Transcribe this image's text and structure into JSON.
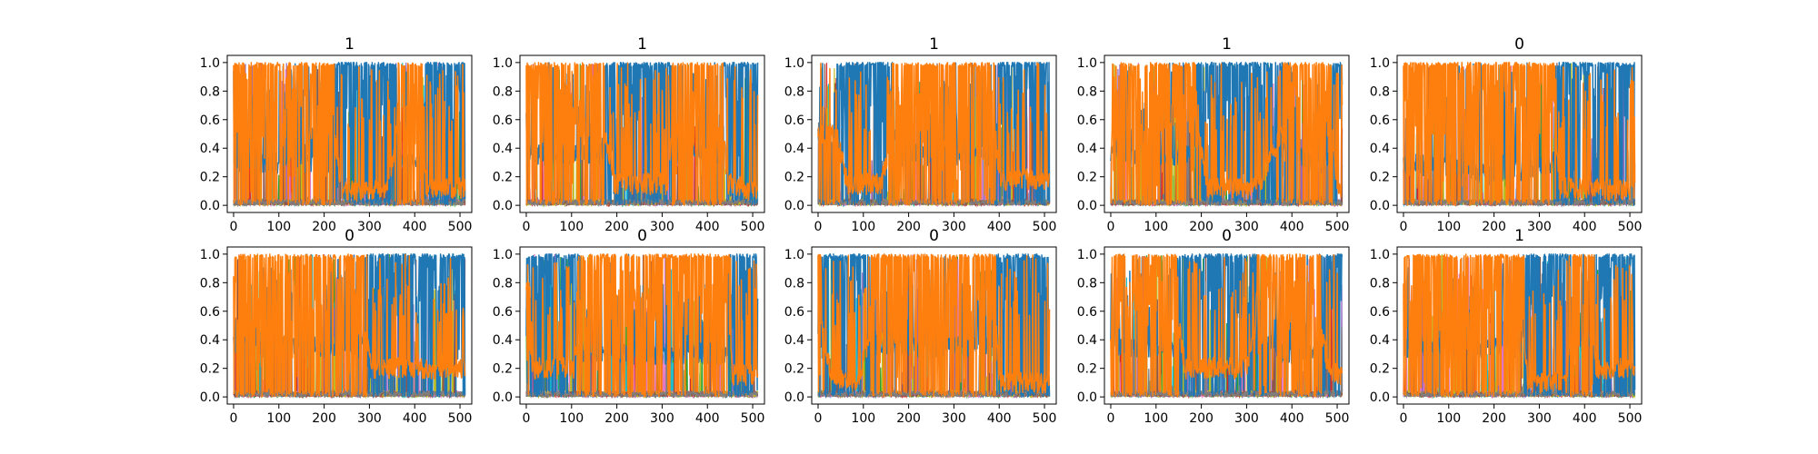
{
  "figure": {
    "layout": {
      "rows": 2,
      "cols": 5
    }
  },
  "chart_data": [
    {
      "type": "line",
      "title": "1",
      "xlim": [
        -14,
        526
      ],
      "ylim": [
        -0.05,
        1.05
      ],
      "xticks": [
        "0",
        "100",
        "200",
        "300",
        "400",
        "500"
      ],
      "yticks": [
        "0.0",
        "0.2",
        "0.4",
        "0.6",
        "0.8",
        "1.0"
      ],
      "grid": false,
      "n_points": 512,
      "series": [
        {
          "color": "#ff7f0e",
          "profile": [
            [
              0,
              0.75
            ],
            [
              210,
              0.75
            ],
            [
              225,
              0.45
            ],
            [
              240,
              0.1
            ],
            [
              340,
              0.1
            ],
            [
              370,
              0.7
            ],
            [
              415,
              0.7
            ],
            [
              425,
              0.12
            ],
            [
              511,
              0.12
            ]
          ]
        },
        {
          "color": "#1f77b4",
          "profile": [
            [
              0,
              0.3
            ],
            [
              210,
              0.3
            ],
            [
              240,
              0.9
            ],
            [
              340,
              0.9
            ],
            [
              370,
              0.3
            ],
            [
              415,
              0.3
            ],
            [
              425,
              0.88
            ],
            [
              511,
              0.88
            ]
          ]
        }
      ]
    },
    {
      "type": "line",
      "title": "1",
      "xlim": [
        -14,
        526
      ],
      "ylim": [
        -0.05,
        1.05
      ],
      "xticks": [
        "0",
        "100",
        "200",
        "300",
        "400",
        "500"
      ],
      "yticks": [
        "0.0",
        "0.2",
        "0.4",
        "0.6",
        "0.8",
        "1.0"
      ],
      "grid": false,
      "n_points": 512,
      "series": [
        {
          "color": "#ff7f0e",
          "profile": [
            [
              0,
              0.7
            ],
            [
              160,
              0.7
            ],
            [
              195,
              0.15
            ],
            [
              315,
              0.15
            ],
            [
              325,
              0.7
            ],
            [
              430,
              0.7
            ],
            [
              445,
              0.15
            ],
            [
              511,
              0.1
            ]
          ]
        },
        {
          "color": "#1f77b4",
          "profile": [
            [
              0,
              0.35
            ],
            [
              160,
              0.35
            ],
            [
              195,
              0.88
            ],
            [
              315,
              0.88
            ],
            [
              325,
              0.35
            ],
            [
              430,
              0.35
            ],
            [
              445,
              0.9
            ],
            [
              511,
              0.9
            ]
          ]
        }
      ]
    },
    {
      "type": "line",
      "title": "1",
      "xlim": [
        -14,
        526
      ],
      "ylim": [
        -0.05,
        1.05
      ],
      "xticks": [
        "0",
        "100",
        "200",
        "300",
        "400",
        "500"
      ],
      "yticks": [
        "0.0",
        "0.2",
        "0.4",
        "0.6",
        "0.8",
        "1.0"
      ],
      "grid": false,
      "n_points": 512,
      "series": [
        {
          "color": "#ff7f0e",
          "profile": [
            [
              0,
              0.5
            ],
            [
              40,
              0.5
            ],
            [
              65,
              0.15
            ],
            [
              140,
              0.15
            ],
            [
              175,
              0.7
            ],
            [
              385,
              0.7
            ],
            [
              400,
              0.18
            ],
            [
              511,
              0.18
            ]
          ]
        },
        {
          "color": "#1f77b4",
          "profile": [
            [
              0,
              0.5
            ],
            [
              40,
              0.5
            ],
            [
              65,
              0.88
            ],
            [
              140,
              0.88
            ],
            [
              175,
              0.35
            ],
            [
              385,
              0.35
            ],
            [
              400,
              0.86
            ],
            [
              511,
              0.86
            ]
          ]
        }
      ]
    },
    {
      "type": "line",
      "title": "1",
      "xlim": [
        -14,
        526
      ],
      "ylim": [
        -0.05,
        1.05
      ],
      "xticks": [
        "0",
        "100",
        "200",
        "300",
        "400",
        "500"
      ],
      "yticks": [
        "0.0",
        "0.2",
        "0.4",
        "0.6",
        "0.8",
        "1.0"
      ],
      "grid": false,
      "n_points": 512,
      "series": [
        {
          "color": "#ff7f0e",
          "profile": [
            [
              0,
              0.7
            ],
            [
              180,
              0.7
            ],
            [
              215,
              0.12
            ],
            [
              320,
              0.12
            ],
            [
              335,
              0.2
            ],
            [
              430,
              0.85
            ],
            [
              480,
              0.85
            ],
            [
              500,
              0.12
            ],
            [
              511,
              0.12
            ]
          ]
        },
        {
          "color": "#1f77b4",
          "profile": [
            [
              0,
              0.35
            ],
            [
              180,
              0.35
            ],
            [
              215,
              0.9
            ],
            [
              320,
              0.9
            ],
            [
              335,
              0.85
            ],
            [
              430,
              0.3
            ],
            [
              480,
              0.3
            ],
            [
              500,
              0.88
            ],
            [
              511,
              0.88
            ]
          ]
        }
      ]
    },
    {
      "type": "line",
      "title": "0",
      "xlim": [
        -14,
        526
      ],
      "ylim": [
        -0.05,
        1.05
      ],
      "xticks": [
        "0",
        "100",
        "200",
        "300",
        "400",
        "500"
      ],
      "yticks": [
        "0.0",
        "0.2",
        "0.4",
        "0.6",
        "0.8",
        "1.0"
      ],
      "grid": false,
      "n_points": 512,
      "series": [
        {
          "color": "#ff7f0e",
          "profile": [
            [
              0,
              0.75
            ],
            [
              110,
              0.8
            ],
            [
              200,
              0.85
            ],
            [
              330,
              0.75
            ],
            [
              345,
              0.12
            ],
            [
              511,
              0.1
            ]
          ]
        },
        {
          "color": "#1f77b4",
          "profile": [
            [
              0,
              0.3
            ],
            [
              110,
              0.25
            ],
            [
              200,
              0.2
            ],
            [
              330,
              0.3
            ],
            [
              345,
              0.9
            ],
            [
              511,
              0.9
            ]
          ]
        }
      ]
    },
    {
      "type": "line",
      "title": "0",
      "xlim": [
        -14,
        526
      ],
      "ylim": [
        -0.05,
        1.05
      ],
      "xticks": [
        "0",
        "100",
        "200",
        "300",
        "400",
        "500"
      ],
      "yticks": [
        "0.0",
        "0.2",
        "0.4",
        "0.6",
        "0.8",
        "1.0"
      ],
      "grid": false,
      "n_points": 512,
      "series": [
        {
          "color": "#ff7f0e",
          "profile": [
            [
              0,
              0.7
            ],
            [
              280,
              0.7
            ],
            [
              305,
              0.2
            ],
            [
              511,
              0.2
            ]
          ]
        },
        {
          "color": "#1f77b4",
          "profile": [
            [
              0,
              0.35
            ],
            [
              280,
              0.35
            ],
            [
              305,
              0.85
            ],
            [
              511,
              0.85
            ]
          ]
        }
      ]
    },
    {
      "type": "line",
      "title": "0",
      "xlim": [
        -14,
        526
      ],
      "ylim": [
        -0.05,
        1.05
      ],
      "xticks": [
        "0",
        "100",
        "200",
        "300",
        "400",
        "500"
      ],
      "yticks": [
        "0.0",
        "0.2",
        "0.4",
        "0.6",
        "0.8",
        "1.0"
      ],
      "grid": false,
      "n_points": 512,
      "series": [
        {
          "color": "#ff7f0e",
          "profile": [
            [
              0,
              0.55
            ],
            [
              15,
              0.2
            ],
            [
              105,
              0.2
            ],
            [
              125,
              0.75
            ],
            [
              445,
              0.75
            ],
            [
              455,
              0.15
            ],
            [
              511,
              0.15
            ]
          ]
        },
        {
          "color": "#1f77b4",
          "profile": [
            [
              0,
              0.5
            ],
            [
              15,
              0.88
            ],
            [
              105,
              0.88
            ],
            [
              125,
              0.3
            ],
            [
              445,
              0.3
            ],
            [
              455,
              0.88
            ],
            [
              511,
              0.88
            ]
          ]
        }
      ]
    },
    {
      "type": "line",
      "title": "0",
      "xlim": [
        -14,
        526
      ],
      "ylim": [
        -0.05,
        1.05
      ],
      "xticks": [
        "0",
        "100",
        "200",
        "300",
        "400",
        "500"
      ],
      "yticks": [
        "0.0",
        "0.2",
        "0.4",
        "0.6",
        "0.8",
        "1.0"
      ],
      "grid": false,
      "n_points": 512,
      "series": [
        {
          "color": "#ff7f0e",
          "profile": [
            [
              0,
              0.6
            ],
            [
              30,
              0.15
            ],
            [
              90,
              0.1
            ],
            [
              130,
              0.7
            ],
            [
              390,
              0.7
            ],
            [
              400,
              0.1
            ],
            [
              511,
              0.1
            ]
          ]
        },
        {
          "color": "#1f77b4",
          "profile": [
            [
              0,
              0.45
            ],
            [
              30,
              0.85
            ],
            [
              90,
              0.9
            ],
            [
              130,
              0.35
            ],
            [
              390,
              0.35
            ],
            [
              400,
              0.9
            ],
            [
              511,
              0.9
            ]
          ]
        }
      ]
    },
    {
      "type": "line",
      "title": "0",
      "xlim": [
        -14,
        526
      ],
      "ylim": [
        -0.05,
        1.05
      ],
      "xticks": [
        "0",
        "100",
        "200",
        "300",
        "400",
        "500"
      ],
      "yticks": [
        "0.0",
        "0.2",
        "0.4",
        "0.6",
        "0.8",
        "1.0"
      ],
      "grid": false,
      "n_points": 512,
      "series": [
        {
          "color": "#ff7f0e",
          "profile": [
            [
              0,
              0.7
            ],
            [
              140,
              0.7
            ],
            [
              165,
              0.2
            ],
            [
              300,
              0.2
            ],
            [
              325,
              0.55
            ],
            [
              380,
              0.75
            ],
            [
              450,
              0.75
            ],
            [
              480,
              0.2
            ],
            [
              511,
              0.15
            ]
          ]
        },
        {
          "color": "#1f77b4",
          "profile": [
            [
              0,
              0.35
            ],
            [
              140,
              0.35
            ],
            [
              165,
              0.88
            ],
            [
              300,
              0.85
            ],
            [
              325,
              0.5
            ],
            [
              380,
              0.3
            ],
            [
              450,
              0.3
            ],
            [
              480,
              0.85
            ],
            [
              511,
              0.88
            ]
          ]
        }
      ]
    },
    {
      "type": "line",
      "title": "1",
      "xlim": [
        -14,
        526
      ],
      "ylim": [
        -0.05,
        1.05
      ],
      "xticks": [
        "0",
        "100",
        "200",
        "300",
        "400",
        "500"
      ],
      "yticks": [
        "0.0",
        "0.2",
        "0.4",
        "0.6",
        "0.8",
        "1.0"
      ],
      "grid": false,
      "n_points": 512,
      "series": [
        {
          "color": "#ff7f0e",
          "profile": [
            [
              0,
              0.7
            ],
            [
              260,
              0.7
            ],
            [
              275,
              0.1
            ],
            [
              360,
              0.1
            ],
            [
              375,
              0.65
            ],
            [
              415,
              0.65
            ],
            [
              425,
              0.2
            ],
            [
              511,
              0.2
            ]
          ]
        },
        {
          "color": "#1f77b4",
          "profile": [
            [
              0,
              0.35
            ],
            [
              260,
              0.35
            ],
            [
              275,
              0.88
            ],
            [
              360,
              0.88
            ],
            [
              375,
              0.4
            ],
            [
              415,
              0.4
            ],
            [
              425,
              0.85
            ],
            [
              511,
              0.85
            ]
          ]
        }
      ]
    }
  ],
  "accent_colors": [
    "#2ca02c",
    "#17becf",
    "#d62728",
    "#9467bd",
    "#e377c2",
    "#bcbd22",
    "#8c564b",
    "#7f7f7f"
  ]
}
